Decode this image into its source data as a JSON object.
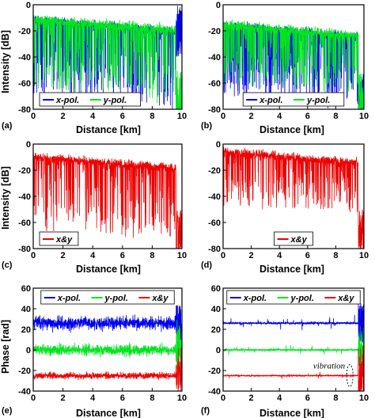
{
  "colors": {
    "x_pol": "#0000ee",
    "y_pol": "#00e61e",
    "xy": "#ee0000"
  },
  "labels": {
    "intensity_y": "Intensity [dB]",
    "phase_y": "Phase [rad]",
    "distance_x": "Distance [km]",
    "a": "(a)",
    "b": "(b)",
    "c": "(c)",
    "d": "(d)",
    "e": "(e)",
    "f": "(f)",
    "vibration": "vibration"
  },
  "chart_data": [
    {
      "panel": "a",
      "type": "line",
      "xlabel": "Distance [km]",
      "ylabel": "Intensity [dB]",
      "xlim": [
        0,
        10
      ],
      "ylim": [
        -80,
        0
      ],
      "xticks": [
        "0",
        "2",
        "4",
        "6",
        "8",
        "10"
      ],
      "yticks": [
        "0",
        "-20",
        "-40",
        "-60",
        "-80"
      ],
      "fiber_end_km": 9.6,
      "legend": "bottom-left",
      "series": [
        {
          "name": "x-pol.",
          "color": "#0000ee",
          "mean_db": -12,
          "drop_floor_db": -70,
          "noise_floor_db": -30
        },
        {
          "name": "y-pol.",
          "color": "#00e61e",
          "mean_db": -11,
          "drop_floor_db": -65,
          "noise_floor_db": -80
        }
      ]
    },
    {
      "panel": "b",
      "type": "line",
      "xlabel": "Distance [km]",
      "ylabel": "",
      "xlim": [
        0,
        10
      ],
      "ylim": [
        -80,
        0
      ],
      "xticks": [
        "0",
        "2",
        "4",
        "6",
        "8",
        "10"
      ],
      "yticks": [
        "0",
        "-20",
        "-40",
        "-60",
        "-80"
      ],
      "fiber_end_km": 9.6,
      "legend": "bottom",
      "series": [
        {
          "name": "x-pol.",
          "color": "#0000ee",
          "mean_db": -16,
          "drop_floor_db": -70,
          "noise_floor_db": -80
        },
        {
          "name": "y-pol.",
          "color": "#00e61e",
          "mean_db": -15,
          "drop_floor_db": -60,
          "noise_floor_db": -80
        }
      ]
    },
    {
      "panel": "c",
      "type": "line",
      "xlabel": "Distance [km]",
      "ylabel": "Intensity [dB]",
      "xlim": [
        0,
        10
      ],
      "ylim": [
        -80,
        0
      ],
      "xticks": [
        "0",
        "2",
        "4",
        "6",
        "8",
        "10"
      ],
      "yticks": [
        "0",
        "-20",
        "-40",
        "-60",
        "-80"
      ],
      "fiber_end_km": 9.6,
      "legend": "bottom-left",
      "series": [
        {
          "name": "x&y",
          "color": "#ee0000",
          "mean_db": -10,
          "drop_floor_db": -65,
          "noise_floor_db": -80
        }
      ]
    },
    {
      "panel": "d",
      "type": "line",
      "xlabel": "Distance [km]",
      "ylabel": "",
      "xlim": [
        0,
        10
      ],
      "ylim": [
        -80,
        0
      ],
      "xticks": [
        "0",
        "2",
        "4",
        "6",
        "8",
        "10"
      ],
      "yticks": [
        "0",
        "-20",
        "-40",
        "-60",
        "-80"
      ],
      "fiber_end_km": 9.6,
      "legend": "bottom",
      "series": [
        {
          "name": "x&y",
          "color": "#ee0000",
          "mean_db": -6,
          "drop_floor_db": -45,
          "noise_floor_db": -80
        }
      ]
    },
    {
      "panel": "e",
      "type": "line",
      "xlabel": "Distance [km]",
      "ylabel": "Phase [rad]",
      "xlim": [
        0,
        10
      ],
      "ylim": [
        -40,
        60
      ],
      "xticks": [
        "0",
        "2",
        "4",
        "6",
        "8",
        "10"
      ],
      "yticks": [
        "60",
        "40",
        "20",
        "0",
        "-20",
        "-40"
      ],
      "fiber_end_km": 9.6,
      "legend": "top",
      "series": [
        {
          "name": "x-pol.",
          "color": "#0000ee",
          "offset_rad": 26,
          "noise_rad": 6
        },
        {
          "name": "y-pol.",
          "color": "#00e61e",
          "offset_rad": 0,
          "noise_rad": 5
        },
        {
          "name": "x&y",
          "color": "#ee0000",
          "offset_rad": -25,
          "noise_rad": 3
        }
      ]
    },
    {
      "panel": "f",
      "type": "line",
      "xlabel": "Distance [km]",
      "ylabel": "",
      "xlim": [
        0,
        10
      ],
      "ylim": [
        -40,
        60
      ],
      "xticks": [
        "0",
        "2",
        "4",
        "6",
        "8",
        "10"
      ],
      "yticks": [
        "60",
        "40",
        "20",
        "0",
        "-20",
        "-40"
      ],
      "fiber_end_km": 9.6,
      "legend": "top",
      "annotations": [
        {
          "text": "vibration",
          "x_km": 9.0,
          "y_rad": -25
        }
      ],
      "series": [
        {
          "name": "x-pol.",
          "color": "#0000ee",
          "offset_rad": 26,
          "noise_rad": 1
        },
        {
          "name": "y-pol.",
          "color": "#00e61e",
          "offset_rad": 0,
          "noise_rad": 0.8
        },
        {
          "name": "x&y",
          "color": "#ee0000",
          "offset_rad": -25,
          "noise_rad": 0.5
        }
      ]
    }
  ]
}
